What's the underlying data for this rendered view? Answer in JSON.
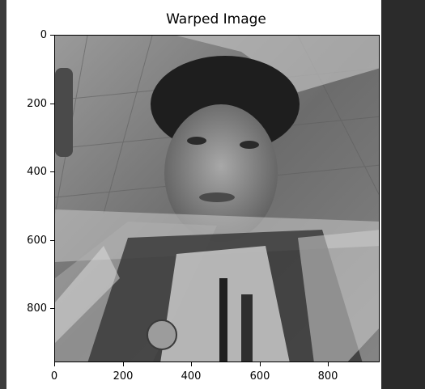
{
  "window": {
    "title": "Warped Image"
  },
  "plot": {
    "title": "Warped Image",
    "image_description": "grayscale warped selfie photo",
    "y_ticks": [
      "0",
      "200",
      "400",
      "600",
      "800"
    ],
    "x_ticks": [
      "0",
      "200",
      "400",
      "600",
      "800"
    ],
    "x_range": [
      0,
      950
    ],
    "y_range": [
      0,
      960
    ]
  },
  "colors": {
    "figure_bg": "#ffffff",
    "panel_bg": "#2b2b2b",
    "axis": "#000000"
  }
}
